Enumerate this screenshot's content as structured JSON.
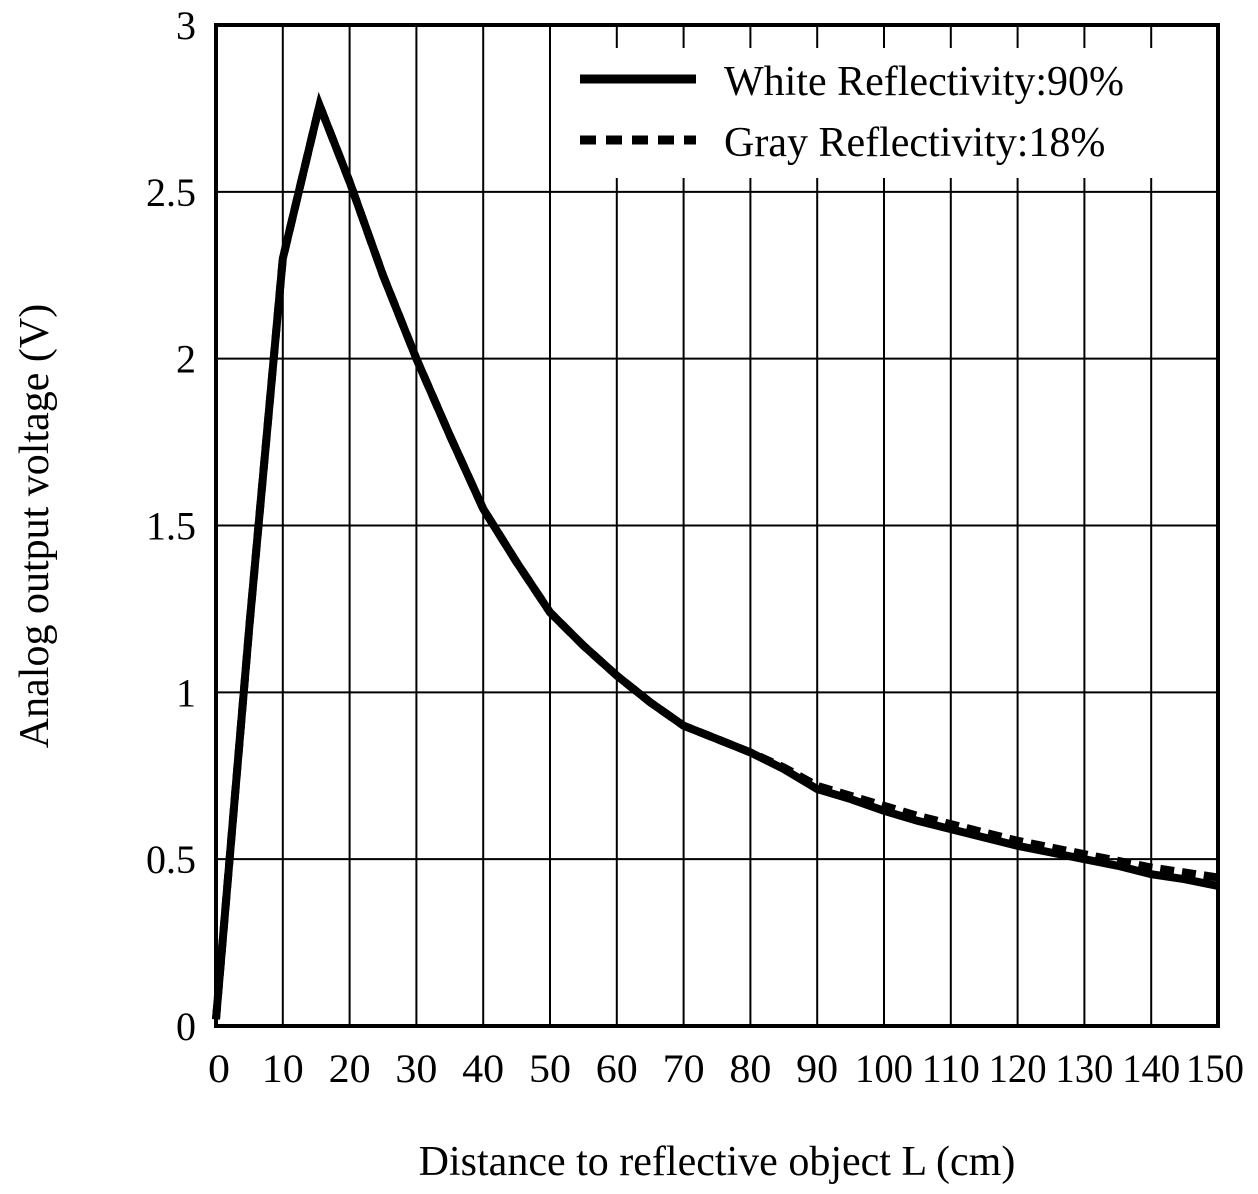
{
  "chart_data": {
    "type": "line",
    "title": "",
    "xlabel": "Distance to reflective object L (cm)",
    "ylabel": "Analog output voltage (V)",
    "xlim": [
      0,
      150
    ],
    "ylim": [
      0,
      3
    ],
    "x_ticks": [
      0,
      10,
      20,
      30,
      40,
      50,
      60,
      70,
      80,
      90,
      100,
      110,
      120,
      130,
      140,
      150
    ],
    "y_ticks": [
      0,
      0.5,
      1,
      1.5,
      2,
      2.5,
      3
    ],
    "x_tick_labels": [
      "0",
      "10",
      "20",
      "30",
      "40",
      "50",
      "60",
      "70",
      "80",
      "90",
      "100",
      "110",
      "120",
      "130",
      "140",
      "150"
    ],
    "y_tick_labels": [
      "0",
      "0.5",
      "1",
      "1.5",
      "2",
      "2.5",
      "3"
    ],
    "grid": true,
    "legend_position": "top-right",
    "series": [
      {
        "name": "White Reflectivity:90%",
        "style": "solid",
        "color": "#000000",
        "x": [
          0,
          5,
          10,
          15.5,
          20,
          25,
          30,
          35,
          40,
          45,
          50,
          55,
          60,
          65,
          70,
          75,
          80,
          85,
          90,
          95,
          100,
          105,
          110,
          115,
          120,
          125,
          130,
          135,
          140,
          145,
          150
        ],
        "y": [
          0.02,
          1.2,
          2.3,
          2.76,
          2.53,
          2.25,
          2.0,
          1.77,
          1.55,
          1.39,
          1.24,
          1.14,
          1.05,
          0.97,
          0.9,
          0.86,
          0.82,
          0.77,
          0.71,
          0.68,
          0.645,
          0.615,
          0.59,
          0.565,
          0.54,
          0.52,
          0.5,
          0.48,
          0.455,
          0.44,
          0.42
        ]
      },
      {
        "name": "Gray Reflectivity:18%",
        "style": "dashed",
        "color": "#000000",
        "x": [
          0,
          5,
          10,
          15.5,
          20,
          25,
          30,
          35,
          40,
          45,
          50,
          55,
          60,
          65,
          70,
          75,
          80,
          85,
          90,
          95,
          100,
          105,
          110,
          115,
          120,
          125,
          130,
          135,
          140,
          145,
          150
        ],
        "y": [
          0.02,
          1.2,
          2.3,
          2.76,
          2.53,
          2.25,
          2.0,
          1.77,
          1.55,
          1.39,
          1.24,
          1.14,
          1.05,
          0.97,
          0.9,
          0.86,
          0.82,
          0.775,
          0.72,
          0.69,
          0.66,
          0.63,
          0.605,
          0.58,
          0.555,
          0.535,
          0.515,
          0.495,
          0.475,
          0.46,
          0.445
        ]
      }
    ]
  }
}
